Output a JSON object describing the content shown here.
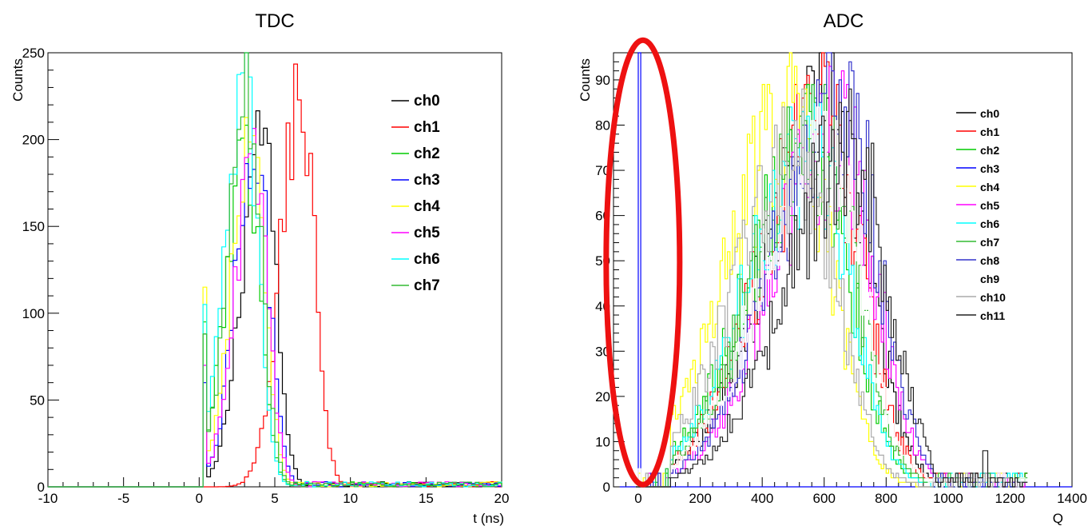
{
  "chart_data": [
    {
      "type": "step-histogram",
      "title": "TDC",
      "xlabel": "t (ns)",
      "ylabel": "Counts",
      "xlim": [
        -10,
        20
      ],
      "ylim": [
        0,
        250
      ],
      "xticks": [
        "-10",
        "-5",
        "0",
        "5",
        "10",
        "15",
        "20"
      ],
      "yticks": [
        "0",
        "50",
        "100",
        "150",
        "200",
        "250"
      ],
      "legend_position": "top-right",
      "series": [
        {
          "name": "ch0",
          "color": "#000000",
          "peak_x": 4.0,
          "peak_y": 214,
          "start_x": 0.25,
          "start_y": 88
        },
        {
          "name": "ch1",
          "color": "#ff0000",
          "peak_x": 6.6,
          "peak_y": 237,
          "start_x": 1.0,
          "start_y": 3
        },
        {
          "name": "ch2",
          "color": "#00cc00",
          "peak_x": 3.0,
          "peak_y": 205,
          "start_x": 0.25,
          "start_y": 95
        },
        {
          "name": "ch3",
          "color": "#0000ff",
          "peak_x": 3.6,
          "peak_y": 200,
          "start_x": 0.25,
          "start_y": 60
        },
        {
          "name": "ch4",
          "color": "#ffff00",
          "peak_x": 3.3,
          "peak_y": 207,
          "start_x": 0.25,
          "start_y": 115
        },
        {
          "name": "ch5",
          "color": "#ff00ff",
          "peak_x": 3.5,
          "peak_y": 190,
          "start_x": 0.25,
          "start_y": 70
        },
        {
          "name": "ch6",
          "color": "#00ffff",
          "peak_x": 2.9,
          "peak_y": 232,
          "start_x": 0.25,
          "start_y": 105
        },
        {
          "name": "ch7",
          "color": "#33bb33",
          "peak_x": 3.1,
          "peak_y": 228,
          "start_x": 0.25,
          "start_y": 88
        }
      ]
    },
    {
      "type": "step-histogram",
      "title": "ADC",
      "xlabel": "Q",
      "ylabel": "Counts",
      "xlim": [
        -80,
        1400
      ],
      "ylim": [
        0,
        96
      ],
      "xticks": [
        "0",
        "200",
        "400",
        "600",
        "800",
        "1000",
        "1200",
        "1400"
      ],
      "yticks": [
        "0",
        "10",
        "20",
        "30",
        "40",
        "50",
        "60",
        "70",
        "80",
        "90"
      ],
      "legend_position": "top-right",
      "annotation": "red ellipse around Q≈0 highlighting ch3 pedestal spike",
      "series": [
        {
          "name": "ch0",
          "color": "#000000",
          "peak_x": 620,
          "peak_y": 91
        },
        {
          "name": "ch1",
          "color": "#ff0000",
          "peak_x": 600,
          "peak_y": 88
        },
        {
          "name": "ch2",
          "color": "#00cc00",
          "peak_x": 560,
          "peak_y": 85
        },
        {
          "name": "ch3",
          "color": "#0000ff",
          "peak_x": 10,
          "peak_y": 96
        },
        {
          "name": "ch4",
          "color": "#ffff00",
          "peak_x": 500,
          "peak_y": 90
        },
        {
          "name": "ch5",
          "color": "#ff00ff",
          "peak_x": 640,
          "peak_y": 86
        },
        {
          "name": "ch6",
          "color": "#00ffff",
          "peak_x": 560,
          "peak_y": 82
        },
        {
          "name": "ch7",
          "color": "#33bb33",
          "peak_x": 580,
          "peak_y": 84
        },
        {
          "name": "ch8",
          "color": "#3333cc",
          "peak_x": 650,
          "peak_y": 96
        },
        {
          "name": "ch9",
          "color": "#ffffff",
          "peak_x": 600,
          "peak_y": 80
        },
        {
          "name": "ch10",
          "color": "#aaaaaa",
          "peak_x": 520,
          "peak_y": 80
        },
        {
          "name": "ch11",
          "color": "#222222",
          "peak_x": 680,
          "peak_y": 81
        }
      ]
    }
  ]
}
